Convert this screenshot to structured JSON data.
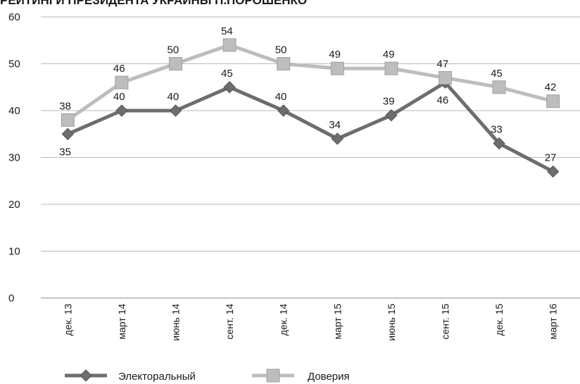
{
  "title": "РЕЙТИНГИ ПРЕЗИДЕНТА УКРАИНЫ П.ПОРОШЕНКО",
  "chart_data": {
    "type": "line",
    "categories": [
      "дек. 13",
      "март 14",
      "июнь 14",
      "сент. 14",
      "дек. 14",
      "март 15",
      "июнь 15",
      "сент. 15",
      "дек. 15",
      "март 16"
    ],
    "ylim": [
      0,
      60
    ],
    "yticks": [
      0,
      10,
      20,
      30,
      40,
      50,
      60
    ],
    "grid": true,
    "legend_position": "bottom",
    "series": [
      {
        "name": "Электоральный",
        "color": "#6d6d6d",
        "marker": "diamond",
        "values": [
          35,
          40,
          40,
          45,
          40,
          34,
          39,
          46,
          33,
          27
        ]
      },
      {
        "name": "Доверия",
        "color": "#bdbdbd",
        "marker": "square",
        "values": [
          38,
          46,
          50,
          54,
          50,
          49,
          49,
          47,
          45,
          42
        ]
      }
    ]
  }
}
